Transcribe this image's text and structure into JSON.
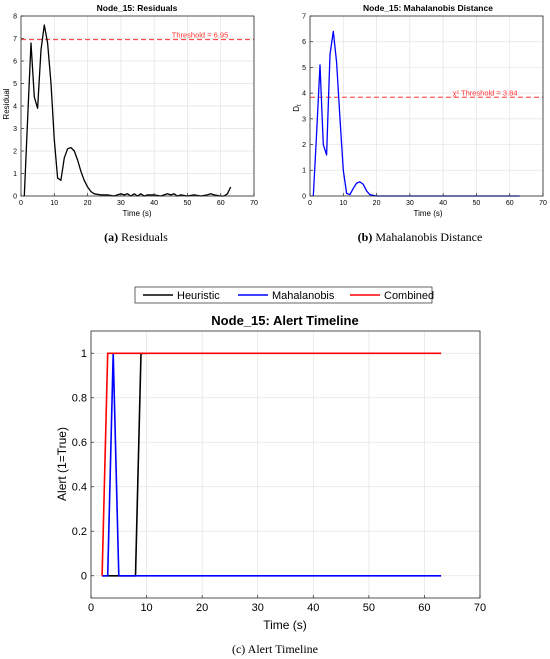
{
  "figure": {
    "captions": [
      {
        "tag": "(a)",
        "text": "Residuals"
      },
      {
        "tag": "(b)",
        "text": "Mahalanobis Distance"
      },
      {
        "tag": "(c)",
        "text": "Alert Timeline"
      }
    ]
  },
  "chart_data": [
    {
      "type": "line",
      "title": "Node_15: Residuals",
      "xlabel": "Time (s)",
      "ylabel": "Residual",
      "xlim": [
        0,
        70
      ],
      "ylim": [
        0,
        8
      ],
      "xticks": [
        0,
        10,
        20,
        30,
        40,
        50,
        60,
        70
      ],
      "yticks": [
        0,
        1,
        2,
        3,
        4,
        5,
        6,
        7,
        8
      ],
      "grid": true,
      "series": [
        {
          "color": "#000000",
          "points": [
            [
              1,
              0
            ],
            [
              2,
              3.5
            ],
            [
              3,
              6.8
            ],
            [
              4,
              4.4
            ],
            [
              5,
              3.9
            ],
            [
              6,
              6.5
            ],
            [
              7,
              7.6
            ],
            [
              8,
              6.8
            ],
            [
              9,
              5
            ],
            [
              10,
              2.5
            ],
            [
              11,
              0.8
            ],
            [
              12,
              0.7
            ],
            [
              13,
              1.7
            ],
            [
              14,
              2.1
            ],
            [
              15,
              2.15
            ],
            [
              16,
              2
            ],
            [
              17,
              1.6
            ],
            [
              18,
              1.1
            ],
            [
              19,
              0.7
            ],
            [
              20,
              0.4
            ],
            [
              21,
              0.2
            ],
            [
              22,
              0.1
            ],
            [
              24,
              0.05
            ],
            [
              26,
              0.05
            ],
            [
              28,
              0
            ],
            [
              30,
              0.1
            ],
            [
              31,
              0.05
            ],
            [
              32,
              0.1
            ],
            [
              33,
              0
            ],
            [
              34,
              0.1
            ],
            [
              35,
              0
            ],
            [
              36,
              0.1
            ],
            [
              37,
              0
            ],
            [
              38,
              0.05
            ],
            [
              40,
              0.05
            ],
            [
              42,
              0
            ],
            [
              44,
              0.1
            ],
            [
              45,
              0.05
            ],
            [
              46,
              0.1
            ],
            [
              47,
              0
            ],
            [
              48,
              0.05
            ],
            [
              50,
              0
            ],
            [
              52,
              0.05
            ],
            [
              54,
              0
            ],
            [
              56,
              0.05
            ],
            [
              57,
              0.1
            ],
            [
              58,
              0.05
            ],
            [
              60,
              0
            ],
            [
              61,
              0
            ],
            [
              62,
              0.1
            ],
            [
              63,
              0.4
            ]
          ]
        }
      ],
      "threshold": {
        "value": 6.95,
        "label": "Threshold = 6.95",
        "color": "#ff3333"
      }
    },
    {
      "type": "line",
      "title": "Node_15: Mahalanobis Distance",
      "xlabel": "Time (s)",
      "ylabel": "D",
      "ylabel_sub": "t",
      "xlim": [
        0,
        70
      ],
      "ylim": [
        0,
        7
      ],
      "xticks": [
        0,
        10,
        20,
        30,
        40,
        50,
        60,
        70
      ],
      "yticks": [
        0,
        1,
        2,
        3,
        4,
        5,
        6,
        7
      ],
      "grid": true,
      "series": [
        {
          "color": "#0000ff",
          "points": [
            [
              1,
              0
            ],
            [
              2,
              2.5
            ],
            [
              3,
              5.1
            ],
            [
              4,
              2
            ],
            [
              5,
              1.6
            ],
            [
              6,
              5.5
            ],
            [
              7,
              6.4
            ],
            [
              8,
              5.2
            ],
            [
              9,
              3
            ],
            [
              10,
              1
            ],
            [
              11,
              0.1
            ],
            [
              12,
              0.05
            ],
            [
              13,
              0.3
            ],
            [
              14,
              0.5
            ],
            [
              15,
              0.55
            ],
            [
              16,
              0.45
            ],
            [
              17,
              0.2
            ],
            [
              18,
              0.05
            ],
            [
              20,
              0
            ],
            [
              25,
              0
            ],
            [
              30,
              0
            ],
            [
              40,
              0
            ],
            [
              50,
              0
            ],
            [
              60,
              0
            ],
            [
              63,
              0
            ]
          ]
        }
      ],
      "threshold": {
        "value": 3.84,
        "label": "χ² Threshold = 3.84",
        "color": "#ff3333"
      }
    },
    {
      "type": "line",
      "title": "Node_15: Alert Timeline",
      "xlabel": "Time (s)",
      "ylabel": "Alert (1=True)",
      "xlim": [
        0,
        70
      ],
      "ylim": [
        -0.1,
        1.1
      ],
      "xticks": [
        0,
        10,
        20,
        30,
        40,
        50,
        60,
        70
      ],
      "yticks": [
        0,
        0.2,
        0.4,
        0.6,
        0.8,
        1
      ],
      "ytick_labels": [
        "0",
        "0.2",
        "0.4",
        "0.6",
        "0.8",
        "1"
      ],
      "grid": true,
      "legend": {
        "placement": "top-outside"
      },
      "series": [
        {
          "name": "Heuristic",
          "color": "#000000",
          "points": [
            [
              2,
              0
            ],
            [
              8,
              0
            ],
            [
              9,
              1
            ],
            [
              10,
              1
            ]
          ]
        },
        {
          "name": "Mahalanobis",
          "color": "#0000ff",
          "points": [
            [
              2,
              0
            ],
            [
              3,
              0
            ],
            [
              4,
              1
            ],
            [
              5,
              0
            ],
            [
              63,
              0
            ]
          ]
        },
        {
          "name": "Combined",
          "color": "#ff0000",
          "points": [
            [
              2,
              0
            ],
            [
              3,
              1
            ],
            [
              63,
              1
            ]
          ]
        }
      ]
    }
  ]
}
